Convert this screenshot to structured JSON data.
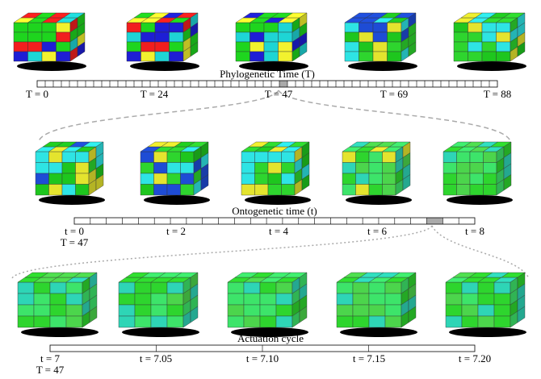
{
  "figure": {
    "timelines": [
      {
        "title": "Phylogenetic Time (T)",
        "labels": [
          "T = 0",
          "T = 24",
          "T = 47",
          "T = 69",
          "T = 88"
        ]
      },
      {
        "title": "Ontogenetic time (t)",
        "labels": [
          "t = 0",
          "t = 2",
          "t = 4",
          "t = 6",
          "t = 8"
        ],
        "sublabel": "T = 47"
      },
      {
        "title": "Actuation cycle",
        "labels": [
          "t = 7",
          "t = 7.05",
          "t = 7.10",
          "t = 7.15",
          "t = 7.20"
        ],
        "sublabel": "T = 47"
      }
    ]
  }
}
